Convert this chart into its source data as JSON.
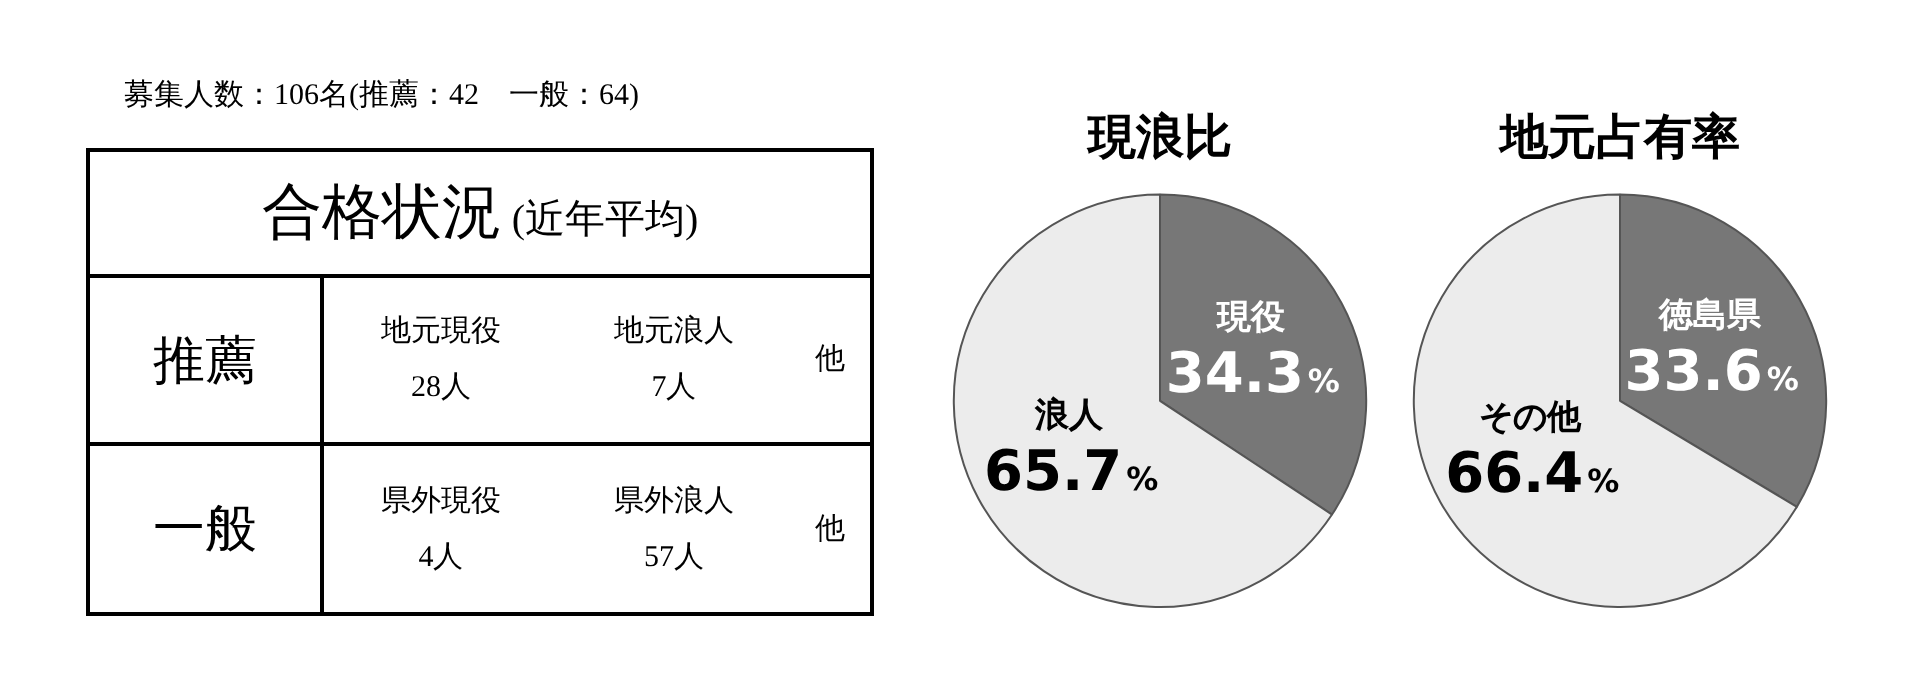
{
  "chart_data": [
    {
      "type": "other",
      "title": "合格状況",
      "subtitle": "(近年平均)",
      "annotations": [
        "募集人数：106名(推薦：42　一般：64)",
        "推薦",
        "地元現役",
        "28人",
        "地元浪人",
        "7人",
        "他",
        "一般",
        "県外現役",
        "4人",
        "県外浪人",
        "57人",
        "他"
      ]
    },
    {
      "type": "pie",
      "title": "現浪比",
      "categories": [
        "現役",
        "浪人"
      ],
      "values": [
        34.3,
        65.7
      ],
      "colors": [
        "#777777",
        "#ececec"
      ],
      "value_labels": [
        "34.3%",
        "65.7%"
      ]
    },
    {
      "type": "pie",
      "title": "地元占有率",
      "categories": [
        "徳島県",
        "その他"
      ],
      "values": [
        33.6,
        66.4
      ],
      "colors": [
        "#777777",
        "#ececec"
      ],
      "value_labels": [
        "33.6%",
        "66.4%"
      ]
    }
  ]
}
